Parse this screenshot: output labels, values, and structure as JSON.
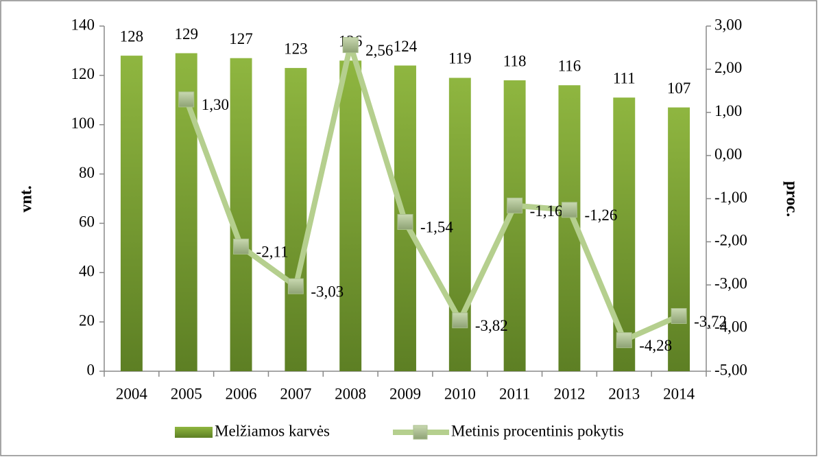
{
  "chart_data": {
    "type": "bar",
    "categories": [
      "2004",
      "2005",
      "2006",
      "2007",
      "2008",
      "2009",
      "2010",
      "2011",
      "2012",
      "2013",
      "2014"
    ],
    "y_label": "vnt.",
    "y2_label": "proc.",
    "ylim": [
      0,
      140
    ],
    "yticks": [
      0,
      20,
      40,
      60,
      80,
      100,
      120,
      140
    ],
    "y2lim": [
      -5,
      3
    ],
    "y2ticks": [
      {
        "value": -5,
        "label": "-5,00"
      },
      {
        "value": -4,
        "label": "-4,00"
      },
      {
        "value": -3,
        "label": "-3,00"
      },
      {
        "value": -2,
        "label": "-2,00"
      },
      {
        "value": -1,
        "label": "-1,00"
      },
      {
        "value": 0,
        "label": "0,00"
      },
      {
        "value": 1,
        "label": "1,00"
      },
      {
        "value": 2,
        "label": "2,00"
      },
      {
        "value": 3,
        "label": "3,00"
      }
    ],
    "legend": "bottom",
    "series": [
      {
        "name": "Melžiamos karvės",
        "type": "bar",
        "color": "#7aa22f",
        "values": [
          128,
          129,
          127,
          123,
          126,
          124,
          119,
          118,
          116,
          111,
          107
        ]
      },
      {
        "name": "Metinis procentinis pokytis",
        "type": "line",
        "axis": "y2",
        "color": "#b5cf8e",
        "values": [
          null,
          1.3,
          -2.11,
          -3.03,
          2.56,
          -1.54,
          -3.82,
          -1.16,
          -1.26,
          -4.28,
          -3.72
        ],
        "value_labels": [
          null,
          "1,30",
          "-2,11",
          "-3,03",
          "2,56",
          "-1,54",
          "-3,82",
          "-1,16",
          "-1,26",
          "-4,28",
          "-3,72"
        ]
      }
    ]
  }
}
